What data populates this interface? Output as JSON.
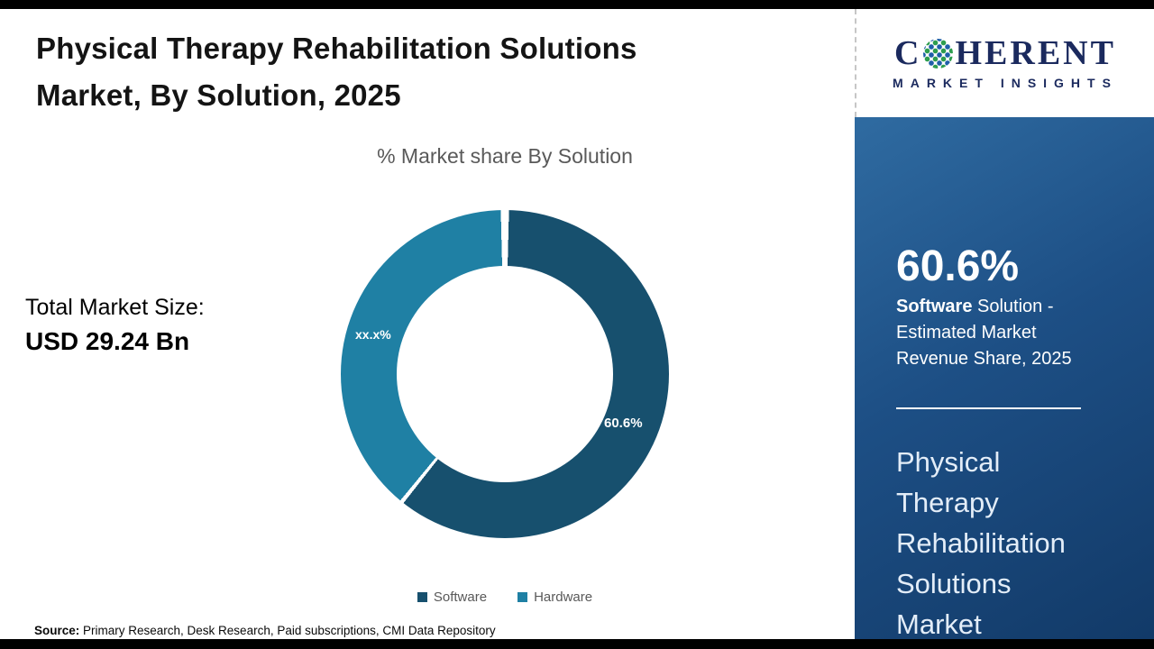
{
  "header": {
    "title_lines": [
      "Physical Therapy Rehabilitation Solutions",
      "Market, By Solution, 2025"
    ]
  },
  "chart_data": {
    "type": "pie",
    "donut": true,
    "title": "% Market share By Solution",
    "categories": [
      "Software",
      "Hardware"
    ],
    "values": [
      60.6,
      39.4
    ],
    "slice_labels": [
      "60.6%",
      "xx.x%"
    ],
    "colors": [
      "#17506E",
      "#1F80A4"
    ],
    "legend_position": "bottom",
    "annotations": {
      "total_label": "Total Market Size:",
      "total_value": "USD 29.24 Bn"
    }
  },
  "sidebar": {
    "logo": {
      "line1_pre": "C",
      "line1_post": "HERENT",
      "line2": "MARKET INSIGHTS"
    },
    "stat": {
      "value": "60.6%",
      "desc_bold": "Software",
      "desc_rest": " Solution - Estimated Market Revenue Share, 2025"
    },
    "panel_title": "Physical Therapy Rehabilitation Solutions Market"
  },
  "footer": {
    "source_label": "Source:",
    "source_text": " Primary Research, Desk Research, Paid subscriptions, CMI Data Repository"
  }
}
